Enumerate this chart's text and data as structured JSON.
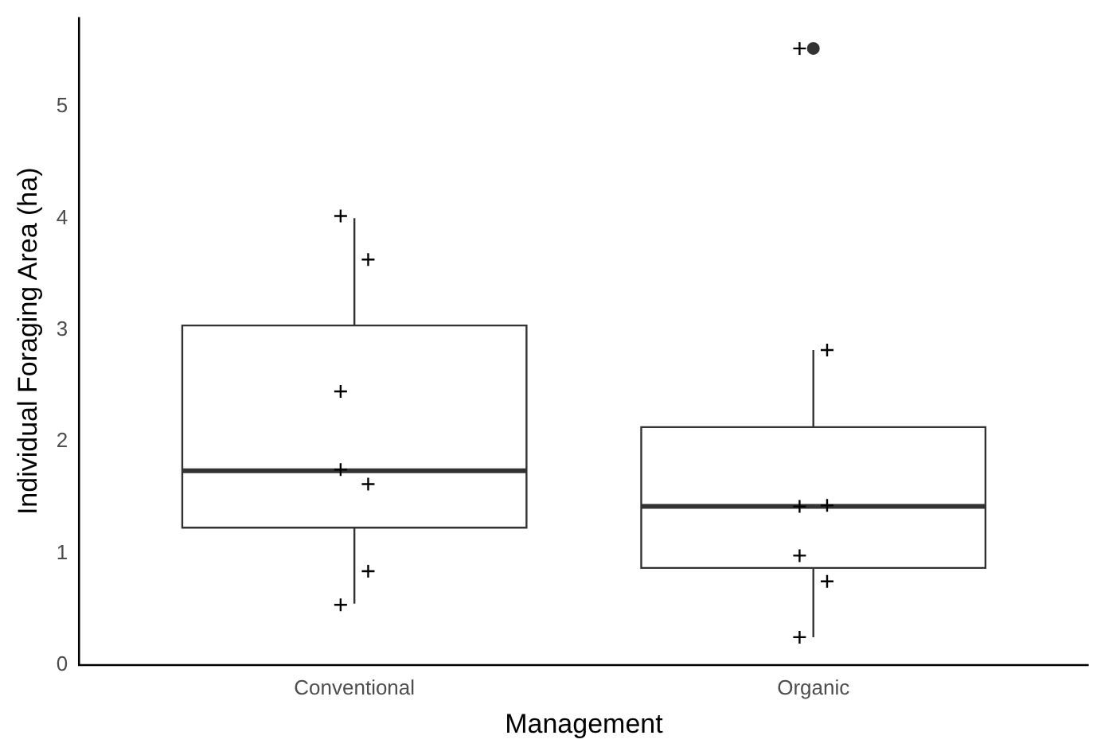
{
  "chart_data": {
    "type": "box",
    "xlabel": "Management",
    "ylabel": "Individual Foraging Area (ha)",
    "categories": [
      "Conventional",
      "Organic"
    ],
    "boxes": [
      {
        "low": 0.55,
        "q1": 1.23,
        "median": 1.74,
        "q3": 3.04,
        "high": 4.0
      },
      {
        "low": 0.25,
        "q1": 0.87,
        "median": 1.42,
        "q3": 2.13,
        "high": 2.82,
        "outliers": [
          5.52
        ]
      }
    ],
    "color": "#ffffff",
    "series": [
      {
        "type": "scatter",
        "color": "#000000",
        "marker": "cross",
        "x": [
          "Conventional",
          "Conventional",
          "Conventional",
          "Conventional",
          "Conventional",
          "Conventional",
          "Conventional",
          "Organic",
          "Organic",
          "Organic",
          "Organic",
          "Organic",
          "Organic",
          "Organic"
        ],
        "values": [
          4.02,
          3.63,
          2.45,
          1.62,
          1.75,
          0.84,
          0.54,
          5.52,
          2.82,
          1.42,
          1.43,
          0.98,
          0.75,
          0.25
        ]
      }
    ],
    "ylim": [
      0,
      5.8
    ],
    "yticks": [
      0,
      1,
      2,
      3,
      4,
      5
    ],
    "grid": false,
    "legend": false
  }
}
